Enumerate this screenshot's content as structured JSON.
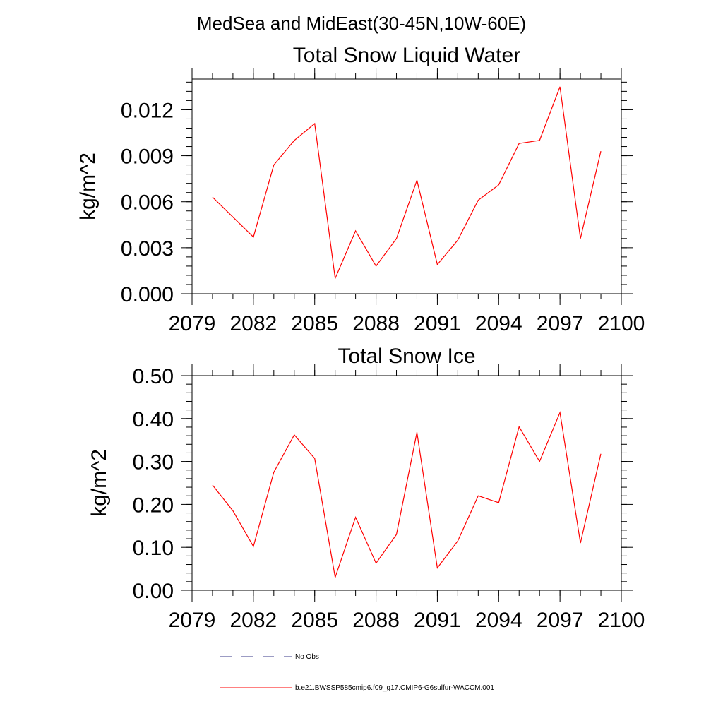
{
  "suptitle": "MedSea and MidEast(30-45N,10W-60E)",
  "colors": {
    "series": "#ff0000",
    "obs": "#3a3a8a",
    "axis": "#000000"
  },
  "legend": {
    "placement": "bottom",
    "entries": [
      {
        "label": "No Obs",
        "style": "dashed"
      },
      {
        "label": "b.e21.BWSSP585cmip6.f09_g17.CMIP6-G6sulfur-WACCM.001",
        "style": "solid"
      }
    ]
  },
  "chart_data": [
    {
      "type": "line",
      "title": "Total Snow Liquid Water",
      "xlabel": "",
      "ylabel": "kg/m^2",
      "xlim": [
        2079,
        2100
      ],
      "ylim": [
        0,
        0.014
      ],
      "xticks": [
        "2079",
        "2082",
        "2085",
        "2088",
        "2091",
        "2094",
        "2097",
        "2100"
      ],
      "yticks": [
        "0.000",
        "0.003",
        "0.006",
        "0.009",
        "0.012"
      ],
      "grid": false,
      "x": [
        2080,
        2081,
        2082,
        2083,
        2084,
        2085,
        2086,
        2087,
        2088,
        2089,
        2090,
        2091,
        2092,
        2093,
        2094,
        2095,
        2096,
        2097,
        2098,
        2099
      ],
      "series": [
        {
          "name": "b.e21.BWSSP585cmip6.f09_g17.CMIP6-G6sulfur-WACCM.001",
          "values": [
            0.0063,
            0.005,
            0.0037,
            0.0084,
            0.01,
            0.0111,
            0.001,
            0.0041,
            0.0018,
            0.0036,
            0.0074,
            0.0019,
            0.0035,
            0.0061,
            0.0071,
            0.0098,
            0.01,
            0.0135,
            0.0036,
            0.0093
          ]
        }
      ]
    },
    {
      "type": "line",
      "title": "Total Snow Ice",
      "xlabel": "",
      "ylabel": "kg/m^2",
      "xlim": [
        2079,
        2100
      ],
      "ylim": [
        0,
        0.5
      ],
      "xticks": [
        "2079",
        "2082",
        "2085",
        "2088",
        "2091",
        "2094",
        "2097",
        "2100"
      ],
      "yticks": [
        "0.00",
        "0.10",
        "0.20",
        "0.30",
        "0.40",
        "0.50"
      ],
      "grid": false,
      "x": [
        2080,
        2081,
        2082,
        2083,
        2084,
        2085,
        2086,
        2087,
        2088,
        2089,
        2090,
        2091,
        2092,
        2093,
        2094,
        2095,
        2096,
        2097,
        2098,
        2099
      ],
      "series": [
        {
          "name": "b.e21.BWSSP585cmip6.f09_g17.CMIP6-G6sulfur-WACCM.001",
          "values": [
            0.245,
            0.185,
            0.102,
            0.275,
            0.362,
            0.307,
            0.03,
            0.17,
            0.063,
            0.13,
            0.368,
            0.052,
            0.115,
            0.22,
            0.204,
            0.381,
            0.3,
            0.414,
            0.11,
            0.318
          ]
        }
      ]
    }
  ]
}
